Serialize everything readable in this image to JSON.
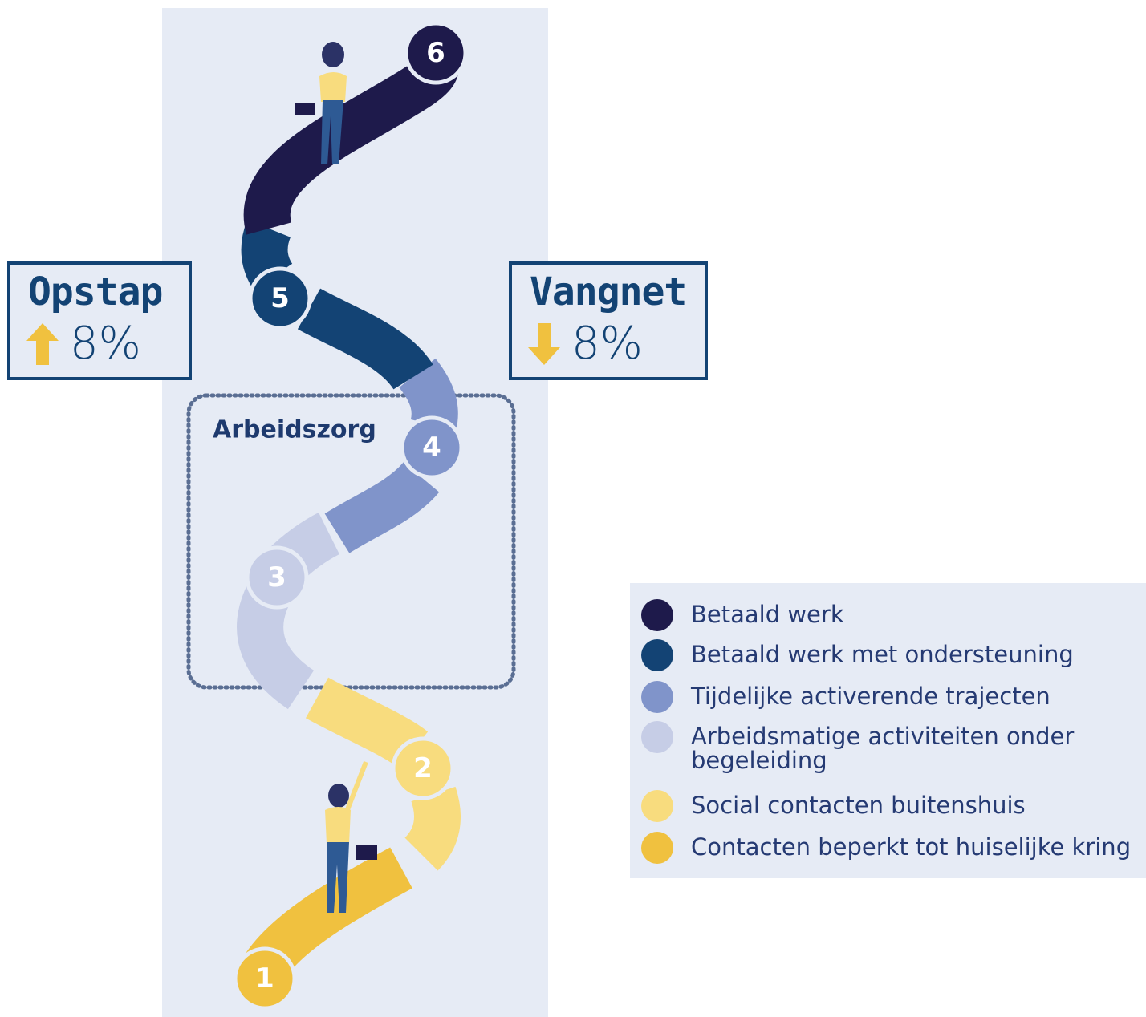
{
  "steps": [
    {
      "label": "1",
      "color": "#f0c13f"
    },
    {
      "label": "2",
      "color": "#f8dc7e"
    },
    {
      "label": "3",
      "color": "#c6cde6"
    },
    {
      "label": "4",
      "color": "#8094ca"
    },
    {
      "label": "5",
      "color": "#134374"
    },
    {
      "label": "6",
      "color": "#1e1a4b"
    }
  ],
  "zone_label": "Arbeidszorg",
  "boxes": [
    {
      "title": "Opstap",
      "direction": "up",
      "value": "8%"
    },
    {
      "title": "Vangnet",
      "direction": "down",
      "value": "8%"
    }
  ],
  "legend": [
    {
      "label": "Betaald werk",
      "color": "#1e1a4b"
    },
    {
      "label": "Betaald werk met ondersteuning",
      "color": "#134374"
    },
    {
      "label": "Tijdelijke activerende trajecten",
      "color": "#8094ca"
    },
    {
      "label": "Arbeidsmatige activiteiten onder begeleiding",
      "color": "#c6cde6"
    },
    {
      "label": "Social contacten buitenshuis",
      "color": "#f8dc7e"
    },
    {
      "label": "Contacten beperkt tot huiselijke kring",
      "color": "#f0c13f"
    }
  ]
}
